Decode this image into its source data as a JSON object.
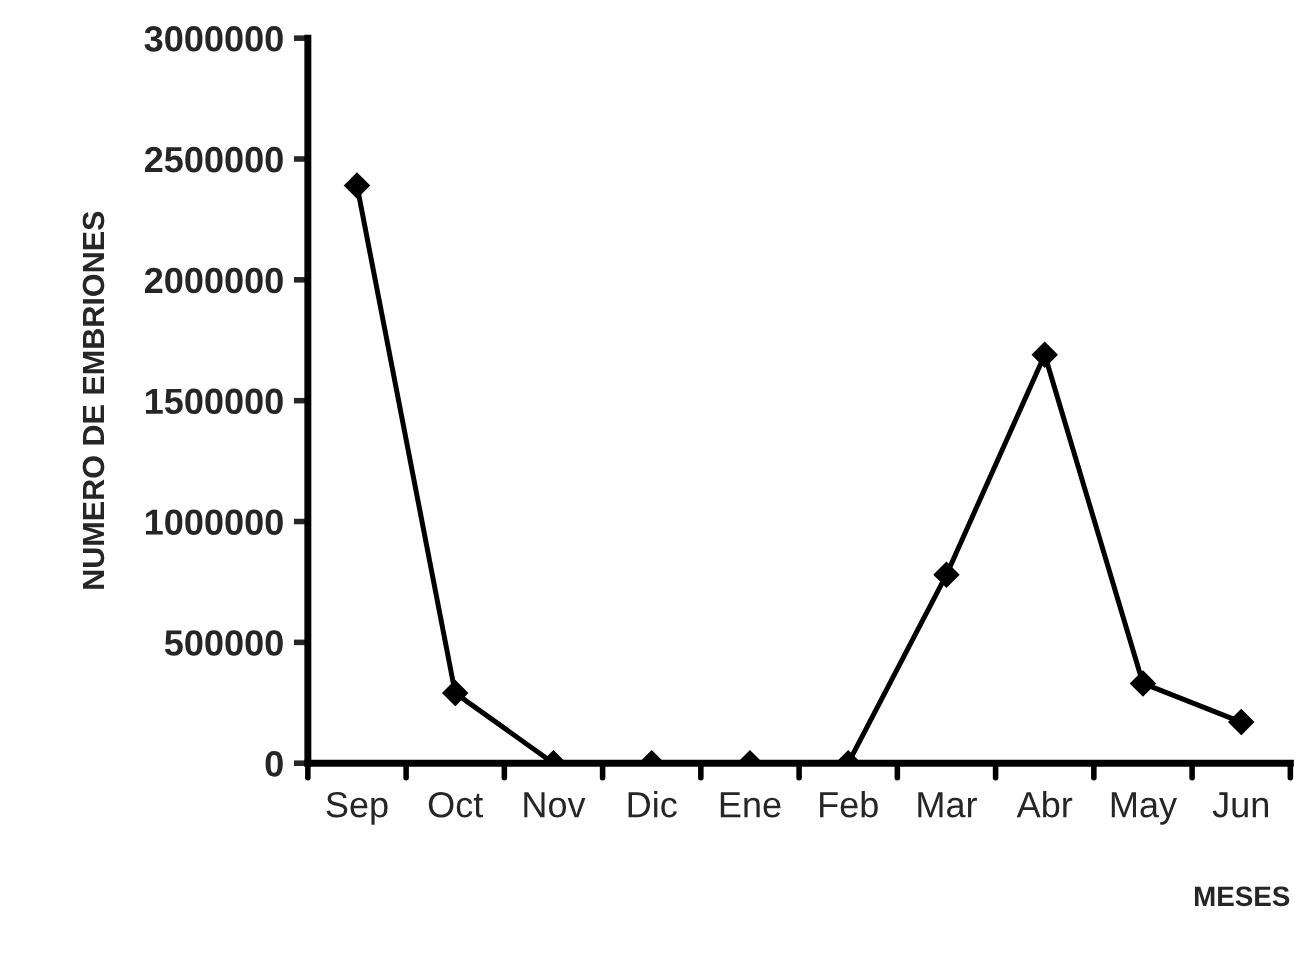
{
  "chart_data": {
    "type": "line",
    "xlabel": "MESES",
    "ylabel": "NUMERO DE EMBRIONES",
    "categories": [
      "Sep",
      "Oct",
      "Nov",
      "Dic",
      "Ene",
      "Feb",
      "Mar",
      "Abr",
      "May",
      "Jun"
    ],
    "series": [
      {
        "color": "#000000",
        "values": [
          2390000,
          290000,
          0,
          0,
          0,
          0,
          780000,
          1690000,
          330000,
          170000
        ]
      }
    ],
    "ylim": [
      0,
      3000000
    ],
    "yticks": [
      0,
      500000,
      1000000,
      1500000,
      2000000,
      2500000,
      3000000
    ],
    "marker": "diamond",
    "line_style": "solid",
    "grid": false,
    "legend": false
  }
}
